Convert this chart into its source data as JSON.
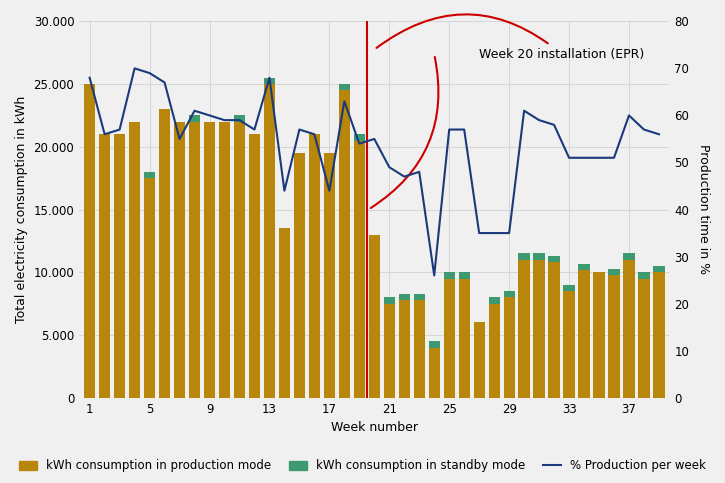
{
  "weeks": [
    1,
    2,
    3,
    4,
    5,
    6,
    7,
    8,
    9,
    10,
    11,
    12,
    13,
    14,
    15,
    16,
    17,
    18,
    19,
    20,
    21,
    22,
    23,
    24,
    25,
    26,
    27,
    28,
    29,
    30,
    31,
    32,
    33,
    34,
    35,
    36,
    37,
    38,
    39
  ],
  "production_kwh": [
    25000,
    21000,
    21000,
    22000,
    17500,
    23000,
    22000,
    22000,
    22000,
    22000,
    22000,
    21000,
    25000,
    13500,
    19500,
    21000,
    19500,
    24500,
    20500,
    13000,
    7500,
    7800,
    7800,
    4000,
    9500,
    9500,
    6000,
    7500,
    8000,
    11000,
    11000,
    10800,
    8500,
    10200,
    10000,
    9800,
    11000,
    9500,
    10000
  ],
  "standby_kwh": [
    0,
    0,
    0,
    0,
    500,
    0,
    0,
    500,
    0,
    0,
    500,
    0,
    500,
    0,
    0,
    0,
    0,
    500,
    500,
    0,
    500,
    500,
    500,
    500,
    500,
    500,
    0,
    500,
    500,
    500,
    500,
    500,
    500,
    500,
    0,
    500,
    500,
    500,
    500
  ],
  "production_pct": [
    68,
    56,
    57,
    70,
    69,
    67,
    55,
    61,
    60,
    59,
    59,
    57,
    68,
    44,
    57,
    56,
    44,
    63,
    54,
    55,
    49,
    47,
    48,
    26,
    57,
    57,
    35,
    35,
    35,
    61,
    59,
    58,
    51,
    51,
    51,
    51,
    60,
    57,
    56
  ],
  "bar_color_production": "#B8860B",
  "bar_color_standby": "#3D9970",
  "line_color_pct": "#1A3A7A",
  "line_color_annotation": "#CC0000",
  "background_color": "#F0F0F0",
  "grid_color": "#CCCCCC",
  "ylabel_left": "Total electricity consumption in kWh",
  "ylabel_right": "Production time in %",
  "xlabel": "Week number",
  "ylim_left": [
    0,
    30000
  ],
  "ylim_right": [
    0,
    80
  ],
  "annotation_text": "Week 20 installation (EPR)",
  "annotation_week": 20,
  "legend_labels": [
    "kWh consumption in production mode",
    "kWh consumption in standby mode",
    "% Production per week"
  ],
  "axis_fontsize": 9,
  "tick_fontsize": 8.5,
  "legend_fontsize": 8.5
}
